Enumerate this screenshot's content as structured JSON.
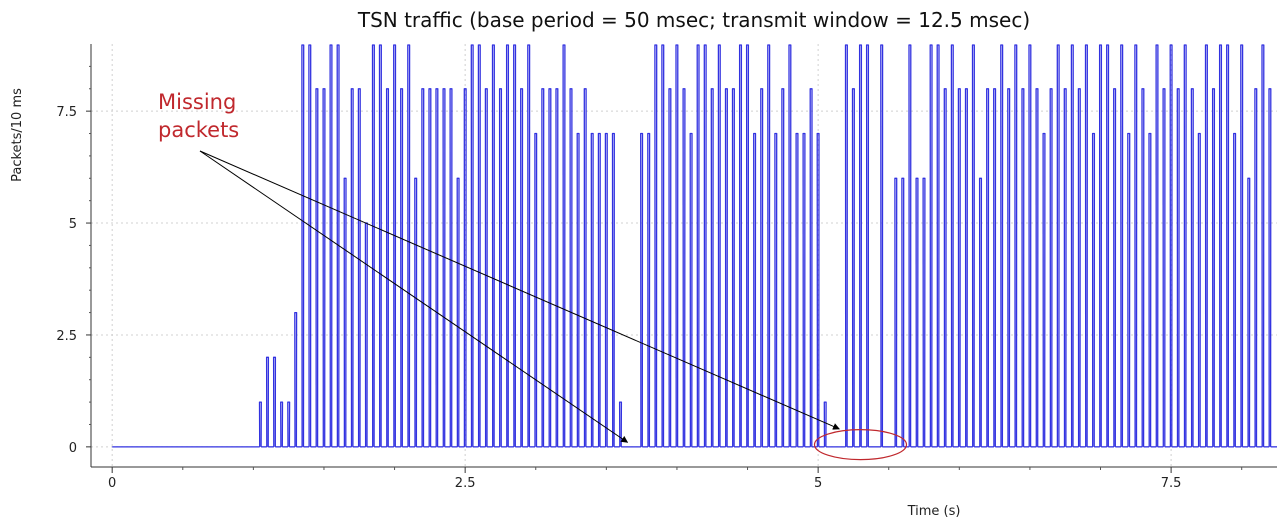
{
  "chart_data": {
    "type": "line",
    "title": "TSN traffic (base period = 50 msec; transmit window = 12.5 msec)",
    "xlabel": "Time (s)",
    "ylabel": "Packets/10 ms",
    "xlim": [
      -0.15,
      8.25
    ],
    "ylim": [
      -0.45,
      9.0
    ],
    "x_ticks": [
      0,
      2.5,
      5,
      7.5
    ],
    "x_tick_labels": [
      "0",
      "2.5",
      "5",
      "7.5"
    ],
    "y_ticks": [
      0,
      2.5,
      5,
      7.5
    ],
    "y_tick_labels": [
      "0",
      "2.5",
      "5",
      "7.5"
    ],
    "grid": true,
    "legend": "none",
    "line_color": "#3232e0",
    "annotation": {
      "text_lines": [
        "Missing",
        "packets"
      ],
      "color": "#c0282d",
      "arrow_targets": [
        [
          3.65,
          0.1
        ],
        [
          5.15,
          0.4
        ]
      ],
      "ellipse_center": [
        5.3,
        0.05
      ]
    },
    "series": [
      {
        "pulse_period_s": 0.05,
        "pulse_width_s": 0.01,
        "pulses": [
          {
            "t": 1.05,
            "v": 1
          },
          {
            "t": 1.1,
            "v": 2
          },
          {
            "t": 1.15,
            "v": 2
          },
          {
            "t": 1.2,
            "v": 1
          },
          {
            "t": 1.25,
            "v": 1
          },
          {
            "t": 1.3,
            "v": 3
          },
          {
            "t": 1.35,
            "v": 9
          },
          {
            "t": 1.4,
            "v": 9
          },
          {
            "t": 1.45,
            "v": 8
          },
          {
            "t": 1.5,
            "v": 8
          },
          {
            "t": 1.55,
            "v": 9
          },
          {
            "t": 1.6,
            "v": 9
          },
          {
            "t": 1.65,
            "v": 6
          },
          {
            "t": 1.7,
            "v": 8
          },
          {
            "t": 1.75,
            "v": 8
          },
          {
            "t": 1.8,
            "v": 5
          },
          {
            "t": 1.85,
            "v": 9
          },
          {
            "t": 1.9,
            "v": 9
          },
          {
            "t": 1.95,
            "v": 8
          },
          {
            "t": 2.0,
            "v": 9
          },
          {
            "t": 2.05,
            "v": 8
          },
          {
            "t": 2.1,
            "v": 9
          },
          {
            "t": 2.15,
            "v": 6
          },
          {
            "t": 2.2,
            "v": 8
          },
          {
            "t": 2.25,
            "v": 8
          },
          {
            "t": 2.3,
            "v": 8
          },
          {
            "t": 2.35,
            "v": 8
          },
          {
            "t": 2.4,
            "v": 8
          },
          {
            "t": 2.45,
            "v": 6
          },
          {
            "t": 2.5,
            "v": 8
          },
          {
            "t": 2.55,
            "v": 9
          },
          {
            "t": 2.6,
            "v": 9
          },
          {
            "t": 2.65,
            "v": 8
          },
          {
            "t": 2.7,
            "v": 9
          },
          {
            "t": 2.75,
            "v": 8
          },
          {
            "t": 2.8,
            "v": 9
          },
          {
            "t": 2.85,
            "v": 9
          },
          {
            "t": 2.9,
            "v": 8
          },
          {
            "t": 2.95,
            "v": 9
          },
          {
            "t": 3.0,
            "v": 7
          },
          {
            "t": 3.05,
            "v": 8
          },
          {
            "t": 3.1,
            "v": 8
          },
          {
            "t": 3.15,
            "v": 8
          },
          {
            "t": 3.2,
            "v": 9
          },
          {
            "t": 3.25,
            "v": 8
          },
          {
            "t": 3.3,
            "v": 7
          },
          {
            "t": 3.35,
            "v": 8
          },
          {
            "t": 3.4,
            "v": 7
          },
          {
            "t": 3.45,
            "v": 7
          },
          {
            "t": 3.5,
            "v": 7
          },
          {
            "t": 3.55,
            "v": 7
          },
          {
            "t": 3.6,
            "v": 1
          },
          {
            "t": 3.75,
            "v": 7
          },
          {
            "t": 3.8,
            "v": 7
          },
          {
            "t": 3.85,
            "v": 9
          },
          {
            "t": 3.9,
            "v": 9
          },
          {
            "t": 3.95,
            "v": 8
          },
          {
            "t": 4.0,
            "v": 9
          },
          {
            "t": 4.05,
            "v": 8
          },
          {
            "t": 4.1,
            "v": 7
          },
          {
            "t": 4.15,
            "v": 9
          },
          {
            "t": 4.2,
            "v": 9
          },
          {
            "t": 4.25,
            "v": 8
          },
          {
            "t": 4.3,
            "v": 9
          },
          {
            "t": 4.35,
            "v": 8
          },
          {
            "t": 4.4,
            "v": 8
          },
          {
            "t": 4.45,
            "v": 9
          },
          {
            "t": 4.5,
            "v": 9
          },
          {
            "t": 4.55,
            "v": 7
          },
          {
            "t": 4.6,
            "v": 8
          },
          {
            "t": 4.65,
            "v": 9
          },
          {
            "t": 4.7,
            "v": 7
          },
          {
            "t": 4.75,
            "v": 8
          },
          {
            "t": 4.8,
            "v": 9
          },
          {
            "t": 4.85,
            "v": 7
          },
          {
            "t": 4.9,
            "v": 7
          },
          {
            "t": 4.95,
            "v": 8
          },
          {
            "t": 5.0,
            "v": 7
          },
          {
            "t": 5.05,
            "v": 1
          },
          {
            "t": 5.2,
            "v": 9
          },
          {
            "t": 5.25,
            "v": 8
          },
          {
            "t": 5.3,
            "v": 9
          },
          {
            "t": 5.35,
            "v": 9
          },
          {
            "t": 5.45,
            "v": 9
          },
          {
            "t": 5.55,
            "v": 6
          },
          {
            "t": 5.6,
            "v": 6
          },
          {
            "t": 5.65,
            "v": 9
          },
          {
            "t": 5.7,
            "v": 6
          },
          {
            "t": 5.75,
            "v": 6
          },
          {
            "t": 5.8,
            "v": 9
          },
          {
            "t": 5.85,
            "v": 9
          },
          {
            "t": 5.9,
            "v": 8
          },
          {
            "t": 5.95,
            "v": 9
          },
          {
            "t": 6.0,
            "v": 8
          },
          {
            "t": 6.05,
            "v": 8
          },
          {
            "t": 6.1,
            "v": 9
          },
          {
            "t": 6.15,
            "v": 6
          },
          {
            "t": 6.2,
            "v": 8
          },
          {
            "t": 6.25,
            "v": 8
          },
          {
            "t": 6.3,
            "v": 9
          },
          {
            "t": 6.35,
            "v": 8
          },
          {
            "t": 6.4,
            "v": 9
          },
          {
            "t": 6.45,
            "v": 8
          },
          {
            "t": 6.5,
            "v": 9
          },
          {
            "t": 6.55,
            "v": 8
          },
          {
            "t": 6.6,
            "v": 7
          },
          {
            "t": 6.65,
            "v": 8
          },
          {
            "t": 6.7,
            "v": 9
          },
          {
            "t": 6.75,
            "v": 8
          },
          {
            "t": 6.8,
            "v": 9
          },
          {
            "t": 6.85,
            "v": 8
          },
          {
            "t": 6.9,
            "v": 9
          },
          {
            "t": 6.95,
            "v": 7
          },
          {
            "t": 7.0,
            "v": 9
          },
          {
            "t": 7.05,
            "v": 9
          },
          {
            "t": 7.1,
            "v": 8
          },
          {
            "t": 7.15,
            "v": 9
          },
          {
            "t": 7.2,
            "v": 7
          },
          {
            "t": 7.25,
            "v": 9
          },
          {
            "t": 7.3,
            "v": 8
          },
          {
            "t": 7.35,
            "v": 7
          },
          {
            "t": 7.4,
            "v": 9
          },
          {
            "t": 7.45,
            "v": 8
          },
          {
            "t": 7.5,
            "v": 9
          },
          {
            "t": 7.55,
            "v": 8
          },
          {
            "t": 7.6,
            "v": 9
          },
          {
            "t": 7.65,
            "v": 8
          },
          {
            "t": 7.7,
            "v": 7
          },
          {
            "t": 7.75,
            "v": 9
          },
          {
            "t": 7.8,
            "v": 8
          },
          {
            "t": 7.85,
            "v": 9
          },
          {
            "t": 7.9,
            "v": 9
          },
          {
            "t": 7.95,
            "v": 7
          },
          {
            "t": 8.0,
            "v": 9
          },
          {
            "t": 8.05,
            "v": 6
          },
          {
            "t": 8.1,
            "v": 8
          },
          {
            "t": 8.15,
            "v": 9
          },
          {
            "t": 8.2,
            "v": 8
          }
        ]
      }
    ]
  }
}
